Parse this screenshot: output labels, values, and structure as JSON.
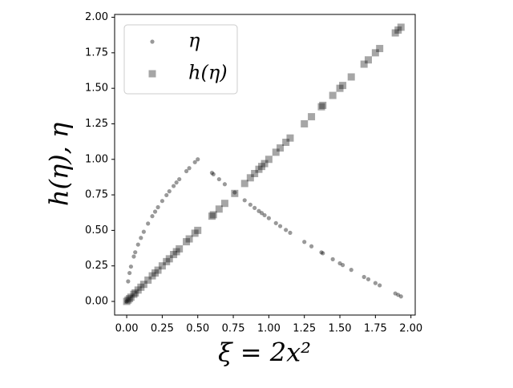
{
  "chart_data": {
    "type": "scatter",
    "xlabel": "ξ = 2x²",
    "ylabel": "h(η), η",
    "xlim": [
      -0.085,
      2.03
    ],
    "ylim": [
      -0.096,
      2.02
    ],
    "xticks": [
      {
        "value": 0,
        "label": "0.00"
      },
      {
        "value": 0.25,
        "label": "0.25"
      },
      {
        "value": 0.5,
        "label": "0.50"
      },
      {
        "value": 0.75,
        "label": "0.75"
      },
      {
        "value": 1,
        "label": "1.00"
      },
      {
        "value": 1.25,
        "label": "1.25"
      },
      {
        "value": 1.5,
        "label": "1.50"
      },
      {
        "value": 1.75,
        "label": "1.75"
      },
      {
        "value": 2,
        "label": "2.00"
      }
    ],
    "yticks": [
      {
        "value": 0,
        "label": "0.00"
      },
      {
        "value": 0.25,
        "label": "0.25"
      },
      {
        "value": 0.5,
        "label": "0.50"
      },
      {
        "value": 0.75,
        "label": "0.75"
      },
      {
        "value": 1,
        "label": "1.00"
      },
      {
        "value": 1.25,
        "label": "1.25"
      },
      {
        "value": 1.5,
        "label": "1.50"
      },
      {
        "value": 1.75,
        "label": "1.75"
      },
      {
        "value": 2,
        "label": "2.00"
      }
    ],
    "legend": "upper left",
    "x": [
      0,
      0.01,
      0.02,
      0.03,
      0.05,
      0.06,
      0.08,
      0.1,
      0.12,
      0.15,
      0.18,
      0.2,
      0.22,
      0.25,
      0.28,
      0.3,
      0.33,
      0.35,
      0.37,
      0.42,
      0.44,
      0.48,
      0.5,
      0.6,
      0.61,
      0.65,
      0.69,
      0.76,
      0.83,
      0.87,
      0.9,
      0.93,
      0.95,
      0.97,
      1.0,
      1.05,
      1.08,
      1.12,
      1.15,
      1.25,
      1.3,
      1.37,
      1.38,
      1.45,
      1.5,
      1.52,
      1.58,
      1.67,
      1.7,
      1.75,
      1.78,
      1.89,
      1.91,
      1.93
    ],
    "series": [
      {
        "name": "η",
        "marker": "circle",
        "color": "rgba(0,0,0,0.4)",
        "values": [
          0,
          0.141,
          0.2,
          0.245,
          0.316,
          0.346,
          0.4,
          0.447,
          0.49,
          0.548,
          0.6,
          0.632,
          0.663,
          0.707,
          0.748,
          0.775,
          0.812,
          0.837,
          0.86,
          0.917,
          0.938,
          0.98,
          1.0,
          0.905,
          0.895,
          0.86,
          0.825,
          0.767,
          0.712,
          0.681,
          0.658,
          0.636,
          0.622,
          0.607,
          0.586,
          0.551,
          0.53,
          0.503,
          0.483,
          0.419,
          0.388,
          0.345,
          0.339,
          0.297,
          0.268,
          0.256,
          0.222,
          0.172,
          0.156,
          0.129,
          0.113,
          0.056,
          0.046,
          0.035
        ]
      },
      {
        "name": "h(η)",
        "marker": "square",
        "color": "rgba(0,0,0,0.35)",
        "values": [
          0,
          0.01,
          0.02,
          0.03,
          0.05,
          0.06,
          0.08,
          0.1,
          0.12,
          0.15,
          0.18,
          0.2,
          0.22,
          0.25,
          0.28,
          0.3,
          0.33,
          0.35,
          0.37,
          0.42,
          0.44,
          0.48,
          0.5,
          0.6,
          0.61,
          0.65,
          0.69,
          0.76,
          0.83,
          0.87,
          0.9,
          0.93,
          0.95,
          0.97,
          1.0,
          1.05,
          1.08,
          1.12,
          1.15,
          1.25,
          1.3,
          1.37,
          1.38,
          1.45,
          1.5,
          1.52,
          1.58,
          1.67,
          1.7,
          1.75,
          1.78,
          1.89,
          1.91,
          1.93
        ]
      }
    ]
  }
}
